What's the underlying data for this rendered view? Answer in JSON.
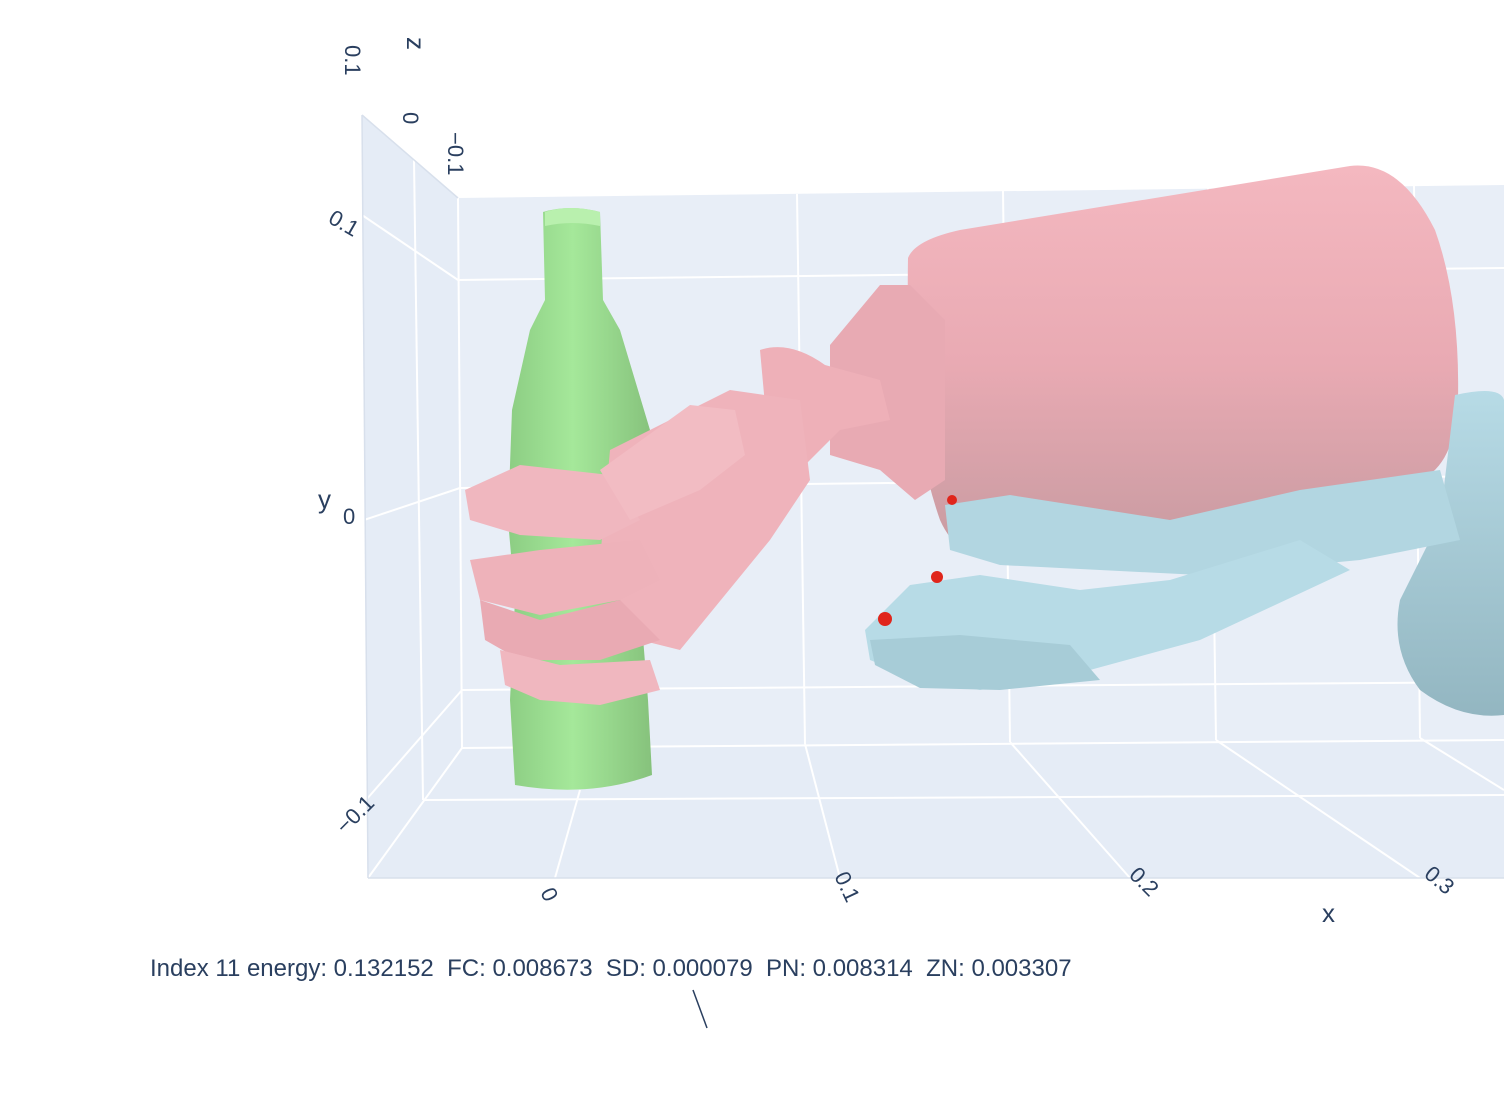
{
  "scene": {
    "background_color": "#ffffff",
    "pane_color": "#e5ecf6",
    "grid_color": "#ffffff",
    "text_color": "#2a3f5f",
    "axes": {
      "x": {
        "title": "x",
        "ticks": [
          "0",
          "0.1",
          "0.2",
          "0.3"
        ]
      },
      "y": {
        "title": "y",
        "ticks": [
          "0.1",
          "0",
          "−0.1"
        ]
      },
      "z": {
        "title": "z",
        "ticks": [
          "0.1",
          "0",
          "−0.1"
        ]
      }
    },
    "meshes": [
      {
        "name": "bottle",
        "color": "#a5e89a"
      },
      {
        "name": "robot-hand-grasp",
        "color": "#f4b8c0"
      },
      {
        "name": "robot-hand-rest",
        "color": "#b7dbe6"
      }
    ],
    "contact_point_color": "#e0251b"
  },
  "annotation": {
    "text": "Index 11 energy: 0.132152  FC: 0.008673  SD: 0.000079  PN: 0.008314  ZN: 0.003307"
  }
}
